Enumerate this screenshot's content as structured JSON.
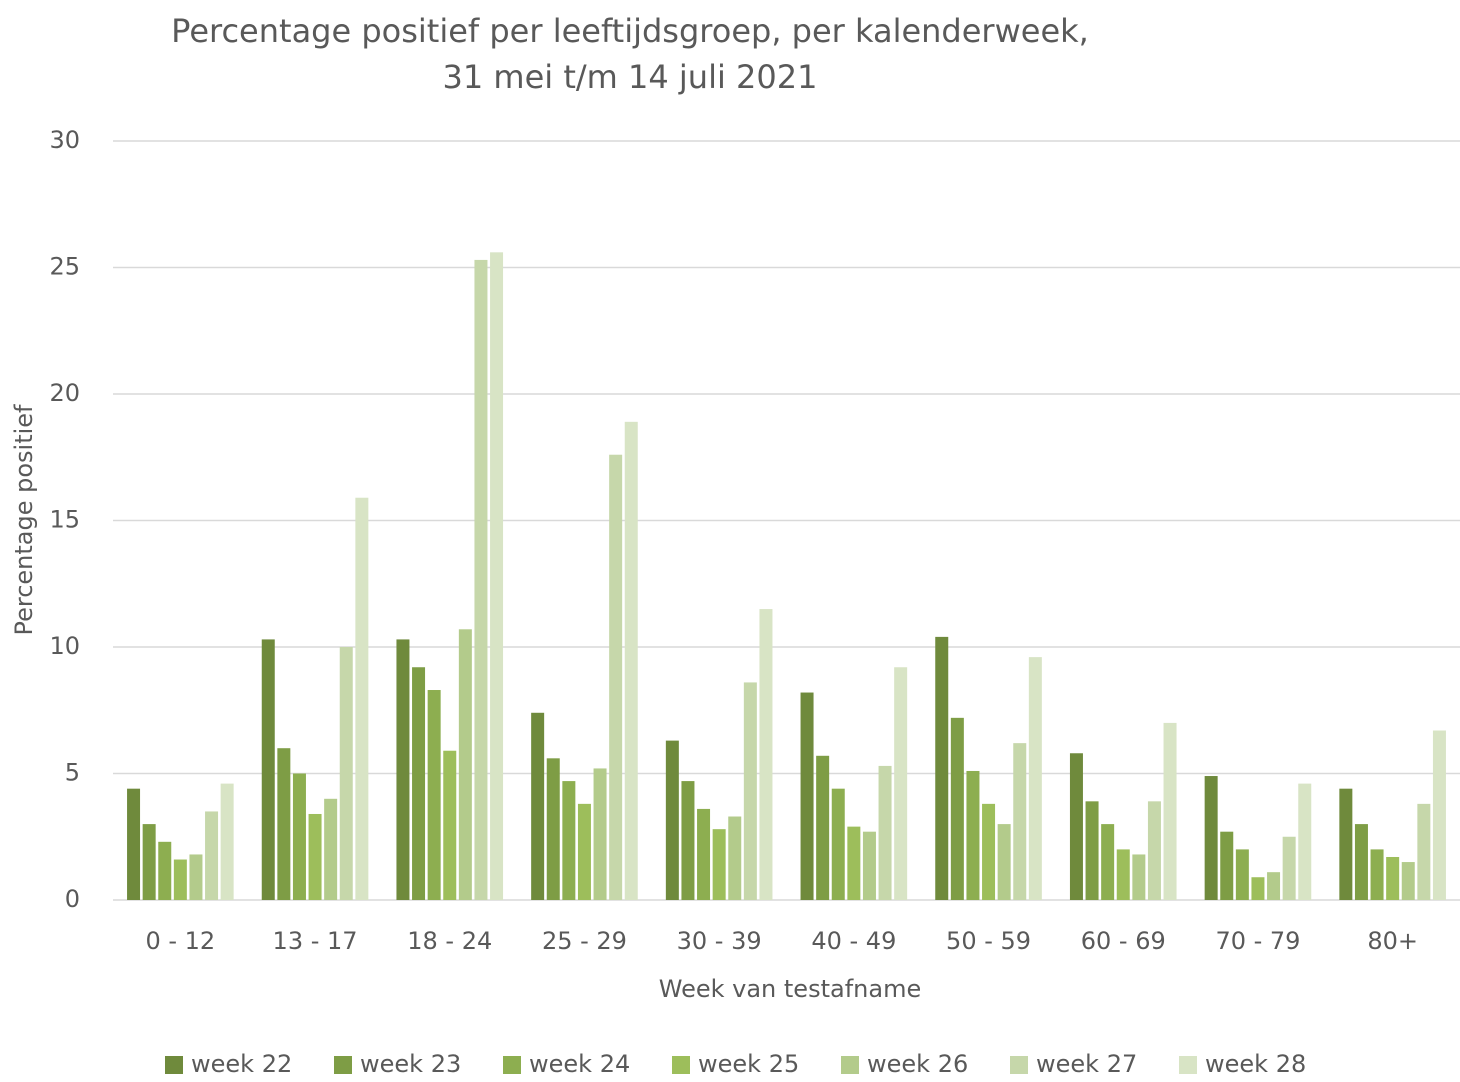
{
  "chart_data": {
    "type": "bar",
    "title": [
      "Percentage positief per leeftijdsgroep, per kalenderweek,",
      "31 mei t/m 14 juli 2021"
    ],
    "x_label": "Week van testafname",
    "y_label": "Percentage positief",
    "categories": [
      "0 - 12",
      "13 - 17",
      "18 - 24",
      "25 - 29",
      "30 - 39",
      "40 - 49",
      "50 - 59",
      "60 - 69",
      "70 - 79",
      "80+"
    ],
    "series": [
      {
        "name": "week 22",
        "color": "#6f8a3c",
        "values": [
          4.4,
          10.3,
          10.3,
          7.4,
          6.3,
          8.2,
          10.4,
          5.8,
          4.9,
          4.4
        ]
      },
      {
        "name": "week 23",
        "color": "#7e9d45",
        "values": [
          3.0,
          6.0,
          9.2,
          5.6,
          4.7,
          5.7,
          7.2,
          3.9,
          2.7,
          3.0
        ]
      },
      {
        "name": "week 24",
        "color": "#8dae50",
        "values": [
          2.3,
          5.0,
          8.3,
          4.7,
          3.6,
          4.4,
          5.1,
          3.0,
          2.0,
          2.0
        ]
      },
      {
        "name": "week 25",
        "color": "#9dbe5b",
        "values": [
          1.6,
          3.4,
          5.9,
          3.8,
          2.8,
          2.9,
          3.8,
          2.0,
          0.9,
          1.7
        ]
      },
      {
        "name": "week 26",
        "color": "#b3cb8b",
        "values": [
          1.8,
          4.0,
          10.7,
          5.2,
          3.3,
          2.7,
          3.0,
          1.8,
          1.1,
          1.5
        ]
      },
      {
        "name": "week 27",
        "color": "#c6d7aa",
        "values": [
          3.5,
          10.0,
          25.3,
          17.6,
          8.6,
          5.3,
          6.2,
          3.9,
          2.5,
          3.8
        ]
      },
      {
        "name": "week 28",
        "color": "#d8e4c5",
        "values": [
          4.6,
          15.9,
          25.6,
          18.9,
          11.5,
          9.2,
          9.6,
          7.0,
          4.6,
          6.7
        ]
      }
    ],
    "ylim": [
      0,
      30
    ],
    "yticks": [
      0,
      5,
      10,
      15,
      20,
      25,
      30
    ],
    "grid": true,
    "legend": "bottom"
  }
}
